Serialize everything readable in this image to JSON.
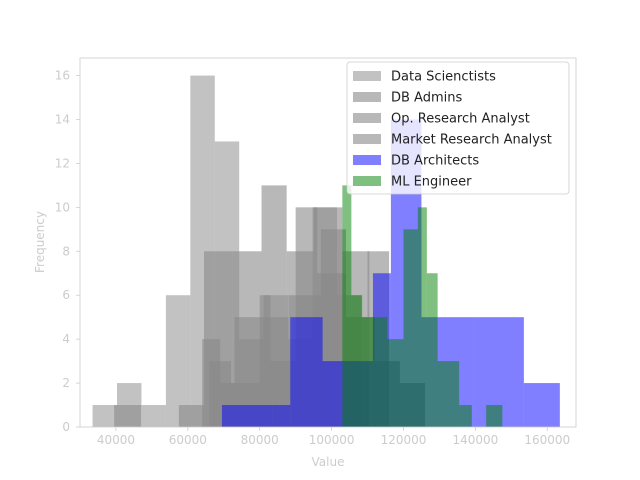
{
  "chart_data": {
    "type": "histogram",
    "xlabel": "Value",
    "ylabel": "Frequency",
    "xlim": [
      30000,
      168000
    ],
    "ylim": [
      0,
      16.8
    ],
    "xticks": [
      40000,
      60000,
      80000,
      100000,
      120000,
      140000,
      160000
    ],
    "xtick_labels": [
      "40000",
      "60000",
      "80000",
      "100000",
      "120000",
      "140000",
      "160000"
    ],
    "yticks": [
      0,
      2,
      4,
      6,
      8,
      10,
      12,
      14,
      16
    ],
    "ytick_labels": [
      "0",
      "2",
      "4",
      "6",
      "8",
      "10",
      "12",
      "14",
      "16"
    ],
    "legend_position": "top-right",
    "series": [
      {
        "name": "Data Scienctists",
        "color": "#999999",
        "opacity": 0.6,
        "bins": [
          {
            "x0": 33500,
            "x1": 40300,
            "count": 1
          },
          {
            "x0": 40300,
            "x1": 47100,
            "count": 2
          },
          {
            "x0": 47100,
            "x1": 53900,
            "count": 1
          },
          {
            "x0": 53900,
            "x1": 60700,
            "count": 6
          },
          {
            "x0": 60700,
            "x1": 67500,
            "count": 16
          },
          {
            "x0": 67500,
            "x1": 74300,
            "count": 13
          },
          {
            "x0": 74300,
            "x1": 81100,
            "count": 4
          },
          {
            "x0": 81100,
            "x1": 87900,
            "count": 6
          },
          {
            "x0": 87900,
            "x1": 94700,
            "count": 4
          },
          {
            "x0": 94700,
            "x1": 101500,
            "count": 10
          },
          {
            "x0": 101500,
            "x1": 108300,
            "count": 6
          }
        ]
      },
      {
        "name": "DB Admins",
        "color": "#888888",
        "opacity": 0.6,
        "bins": [
          {
            "x0": 39500,
            "x1": 47000,
            "count": 1
          },
          {
            "x0": 57500,
            "x1": 64500,
            "count": 1
          },
          {
            "x0": 64500,
            "x1": 72500,
            "count": 8
          },
          {
            "x0": 72500,
            "x1": 80500,
            "count": 8
          },
          {
            "x0": 80500,
            "x1": 87500,
            "count": 11
          },
          {
            "x0": 87500,
            "x1": 95000,
            "count": 8
          },
          {
            "x0": 95000,
            "x1": 103000,
            "count": 10
          },
          {
            "x0": 103000,
            "x1": 110500,
            "count": 8
          }
        ]
      },
      {
        "name": "Op. Research Analyst",
        "color": "#888888",
        "opacity": 0.6,
        "bins": [
          {
            "x0": 64000,
            "x1": 69000,
            "count": 4
          },
          {
            "x0": 69000,
            "x1": 73000,
            "count": 2
          },
          {
            "x0": 73000,
            "x1": 80000,
            "count": 5
          },
          {
            "x0": 80000,
            "x1": 83000,
            "count": 6
          },
          {
            "x0": 83000,
            "x1": 90000,
            "count": 3
          },
          {
            "x0": 90000,
            "x1": 96000,
            "count": 10
          },
          {
            "x0": 96000,
            "x1": 104000,
            "count": 7
          },
          {
            "x0": 104000,
            "x1": 110000,
            "count": 5
          },
          {
            "x0": 110000,
            "x1": 116000,
            "count": 8
          }
        ]
      },
      {
        "name": "Market Research Analyst",
        "color": "#888888",
        "opacity": 0.6,
        "bins": [
          {
            "x0": 66000,
            "x1": 72000,
            "count": 3
          },
          {
            "x0": 72000,
            "x1": 80000,
            "count": 2
          },
          {
            "x0": 80000,
            "x1": 88000,
            "count": 5
          },
          {
            "x0": 88000,
            "x1": 97000,
            "count": 6
          },
          {
            "x0": 97000,
            "x1": 104000,
            "count": 9
          },
          {
            "x0": 104000,
            "x1": 112000,
            "count": 5
          },
          {
            "x0": 112000,
            "x1": 119000,
            "count": 3
          },
          {
            "x0": 119000,
            "x1": 126000,
            "count": 2
          }
        ]
      },
      {
        "name": "DB Architects",
        "color": "#0000ff",
        "opacity": 0.5,
        "bins": [
          {
            "x0": 69500,
            "x1": 83500,
            "count": 1
          },
          {
            "x0": 83500,
            "x1": 88500,
            "count": 1
          },
          {
            "x0": 88500,
            "x1": 97500,
            "count": 5
          },
          {
            "x0": 97500,
            "x1": 111500,
            "count": 3
          },
          {
            "x0": 111500,
            "x1": 116500,
            "count": 7
          },
          {
            "x0": 116500,
            "x1": 125000,
            "count": 14
          },
          {
            "x0": 125000,
            "x1": 139500,
            "count": 5
          },
          {
            "x0": 139500,
            "x1": 153500,
            "count": 5
          },
          {
            "x0": 153500,
            "x1": 163500,
            "count": 2
          }
        ]
      },
      {
        "name": "ML Engineer",
        "color": "#008000",
        "opacity": 0.5,
        "bins": [
          {
            "x0": 103000,
            "x1": 105500,
            "count": 11
          },
          {
            "x0": 105500,
            "x1": 108500,
            "count": 6
          },
          {
            "x0": 108500,
            "x1": 110000,
            "count": 5
          },
          {
            "x0": 110000,
            "x1": 115500,
            "count": 5
          },
          {
            "x0": 115500,
            "x1": 120000,
            "count": 4
          },
          {
            "x0": 120000,
            "x1": 124000,
            "count": 9
          },
          {
            "x0": 124000,
            "x1": 126500,
            "count": 10
          },
          {
            "x0": 126500,
            "x1": 129500,
            "count": 7
          },
          {
            "x0": 129500,
            "x1": 135500,
            "count": 3
          },
          {
            "x0": 135500,
            "x1": 139000,
            "count": 1
          },
          {
            "x0": 143000,
            "x1": 147500,
            "count": 1
          }
        ]
      }
    ]
  }
}
